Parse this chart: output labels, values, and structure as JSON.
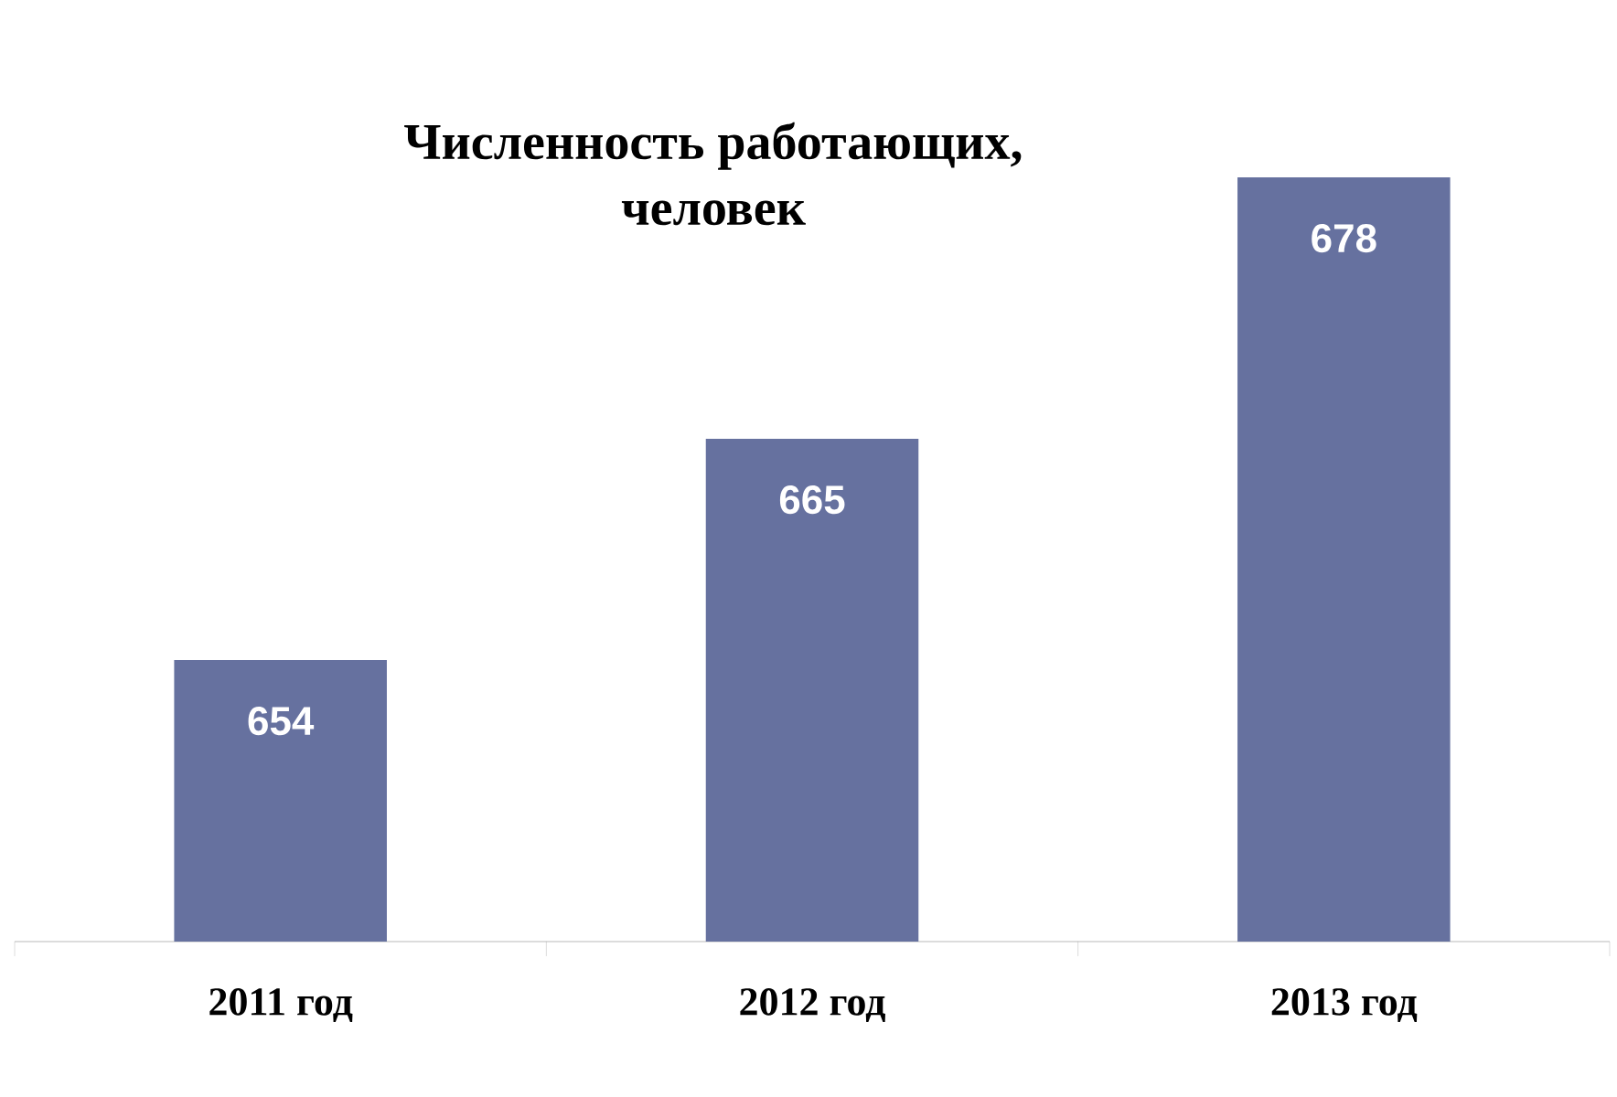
{
  "chart_data": {
    "type": "bar",
    "title": "Численность работающих,\nчеловек",
    "categories": [
      "2011 год",
      "2012 год",
      "2013 год"
    ],
    "values": [
      654,
      665,
      678
    ],
    "color": "#66719f",
    "ylim": [
      640,
      678
    ],
    "data_labels": true
  }
}
